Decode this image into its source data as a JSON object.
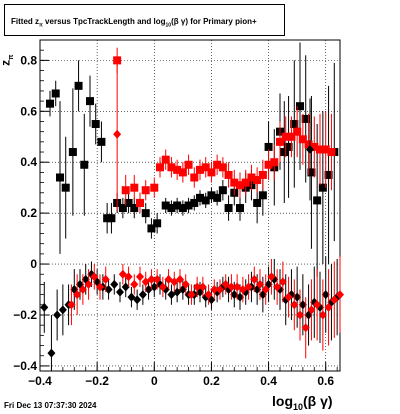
{
  "chart_data": {
    "type": "scatter",
    "title_parts": {
      "prefix": "Fitted  z",
      "sub1": "π",
      "middle": "  versus TpcTrackLength and log",
      "sub2": "10",
      "suffix": "(β γ) for Primary pion+"
    },
    "xlabel_parts": {
      "main": "log",
      "sub": "10",
      "suffix": "(β γ)"
    },
    "ylabel_parts": {
      "main": "z",
      "sub": "π"
    },
    "xlim": [
      -0.4,
      0.65
    ],
    "ylim": [
      -0.42,
      0.88
    ],
    "x_ticks": [
      -0.4,
      -0.2,
      0,
      0.2,
      0.4,
      0.6
    ],
    "x_tick_labels": [
      "−0.4",
      "−0.2",
      "0",
      "0.2",
      "0.4",
      "0.6"
    ],
    "y_ticks": [
      -0.4,
      -0.2,
      0,
      0.2,
      0.4,
      0.6,
      0.8
    ],
    "y_tick_labels": [
      "−0.4",
      "−0.2",
      "0",
      "0.2",
      "0.4",
      "0.6",
      "0.8"
    ],
    "grid": true,
    "series": [
      {
        "color": "#000000",
        "marker": "square",
        "points": [
          [
            -0.365,
            0.63,
            0.05
          ],
          [
            -0.345,
            0.67,
            0.05
          ],
          [
            -0.33,
            0.34,
            0.3
          ],
          [
            -0.31,
            0.3,
            0.2
          ],
          [
            -0.285,
            0.44,
            0.25
          ],
          [
            -0.265,
            0.7,
            0.1
          ],
          [
            -0.245,
            0.39,
            0.2
          ],
          [
            -0.225,
            0.64,
            0.1
          ],
          [
            -0.205,
            0.55,
            0.08
          ],
          [
            -0.185,
            0.48,
            0.08
          ],
          [
            -0.165,
            0.18,
            0.06
          ],
          [
            -0.15,
            0.18,
            0.06
          ],
          [
            -0.13,
            0.24,
            0.04
          ],
          [
            -0.11,
            0.22,
            0.04
          ],
          [
            -0.09,
            0.24,
            0.04
          ],
          [
            -0.07,
            0.22,
            0.04
          ],
          [
            -0.05,
            0.24,
            0.04
          ],
          [
            -0.03,
            0.2,
            0.04
          ],
          [
            -0.01,
            0.14,
            0.04
          ],
          [
            0.01,
            0.16,
            0.04
          ],
          [
            0.04,
            0.23,
            0.03
          ],
          [
            0.06,
            0.22,
            0.03
          ],
          [
            0.08,
            0.23,
            0.03
          ],
          [
            0.1,
            0.22,
            0.03
          ],
          [
            0.12,
            0.23,
            0.03
          ],
          [
            0.14,
            0.24,
            0.03
          ],
          [
            0.16,
            0.26,
            0.03
          ],
          [
            0.18,
            0.25,
            0.03
          ],
          [
            0.2,
            0.27,
            0.03
          ],
          [
            0.22,
            0.26,
            0.03
          ],
          [
            0.24,
            0.29,
            0.04
          ],
          [
            0.26,
            0.22,
            0.05
          ],
          [
            0.28,
            0.28,
            0.05
          ],
          [
            0.3,
            0.22,
            0.05
          ],
          [
            0.32,
            0.3,
            0.06
          ],
          [
            0.34,
            0.31,
            0.06
          ],
          [
            0.36,
            0.24,
            0.08
          ],
          [
            0.38,
            0.27,
            0.08
          ],
          [
            0.4,
            0.46,
            0.1
          ],
          [
            0.42,
            0.38,
            0.15
          ],
          [
            0.44,
            0.52,
            0.15
          ],
          [
            0.455,
            0.44,
            0.2
          ],
          [
            0.47,
            0.46,
            0.2
          ],
          [
            0.49,
            0.55,
            0.25
          ],
          [
            0.51,
            0.62,
            0.25
          ],
          [
            0.53,
            0.57,
            0.25
          ],
          [
            0.55,
            0.36,
            0.3
          ],
          [
            0.57,
            0.25,
            0.3
          ],
          [
            0.59,
            0.3,
            0.3
          ],
          [
            0.61,
            0.35,
            0.35
          ],
          [
            0.63,
            0.44,
            0.35
          ]
        ]
      },
      {
        "color": "#ff0000",
        "marker": "square",
        "points": [
          [
            -0.13,
            0.8,
            0.05
          ],
          [
            -0.1,
            0.29,
            0.06
          ],
          [
            -0.07,
            0.3,
            0.05
          ],
          [
            -0.05,
            0.24,
            0.04
          ],
          [
            -0.03,
            0.29,
            0.04
          ],
          [
            0.0,
            0.3,
            0.04
          ],
          [
            0.02,
            0.38,
            0.04
          ],
          [
            0.04,
            0.41,
            0.04
          ],
          [
            0.06,
            0.38,
            0.04
          ],
          [
            0.08,
            0.37,
            0.04
          ],
          [
            0.1,
            0.36,
            0.04
          ],
          [
            0.12,
            0.39,
            0.04
          ],
          [
            0.14,
            0.34,
            0.04
          ],
          [
            0.16,
            0.37,
            0.04
          ],
          [
            0.18,
            0.38,
            0.04
          ],
          [
            0.2,
            0.36,
            0.04
          ],
          [
            0.22,
            0.39,
            0.04
          ],
          [
            0.24,
            0.38,
            0.04
          ],
          [
            0.26,
            0.35,
            0.05
          ],
          [
            0.28,
            0.32,
            0.05
          ],
          [
            0.3,
            0.31,
            0.05
          ],
          [
            0.32,
            0.32,
            0.05
          ],
          [
            0.34,
            0.34,
            0.05
          ],
          [
            0.36,
            0.33,
            0.05
          ],
          [
            0.38,
            0.35,
            0.06
          ],
          [
            0.4,
            0.39,
            0.06
          ],
          [
            0.42,
            0.4,
            0.07
          ],
          [
            0.44,
            0.48,
            0.08
          ],
          [
            0.46,
            0.5,
            0.08
          ],
          [
            0.48,
            0.5,
            0.08
          ],
          [
            0.5,
            0.52,
            0.1
          ],
          [
            0.52,
            0.49,
            0.1
          ],
          [
            0.54,
            0.47,
            0.12
          ],
          [
            0.56,
            0.46,
            0.12
          ],
          [
            0.58,
            0.45,
            0.14
          ],
          [
            0.6,
            0.45,
            0.15
          ],
          [
            0.62,
            0.44,
            0.15
          ]
        ]
      },
      {
        "color": "#000000",
        "marker": "diamond",
        "points": [
          [
            -0.385,
            -0.17,
            0.1
          ],
          [
            -0.36,
            -0.35,
            0.15
          ],
          [
            -0.34,
            -0.2,
            0.1
          ],
          [
            -0.32,
            -0.18,
            0.1
          ],
          [
            -0.3,
            -0.16,
            0.08
          ],
          [
            -0.28,
            -0.1,
            0.08
          ],
          [
            -0.26,
            -0.08,
            0.06
          ],
          [
            -0.24,
            -0.06,
            0.06
          ],
          [
            -0.22,
            -0.04,
            0.05
          ],
          [
            -0.2,
            -0.07,
            0.05
          ],
          [
            -0.18,
            -0.09,
            0.05
          ],
          [
            -0.16,
            -0.1,
            0.04
          ],
          [
            -0.14,
            -0.08,
            0.04
          ],
          [
            -0.12,
            -0.11,
            0.04
          ],
          [
            -0.1,
            -0.09,
            0.04
          ],
          [
            -0.08,
            -0.13,
            0.04
          ],
          [
            -0.06,
            -0.14,
            0.04
          ],
          [
            -0.04,
            -0.12,
            0.04
          ],
          [
            -0.02,
            -0.1,
            0.04
          ],
          [
            0.0,
            -0.09,
            0.04
          ],
          [
            0.02,
            -0.08,
            0.04
          ],
          [
            0.04,
            -0.1,
            0.04
          ],
          [
            0.06,
            -0.12,
            0.04
          ],
          [
            0.08,
            -0.11,
            0.04
          ],
          [
            0.1,
            -0.1,
            0.04
          ],
          [
            0.12,
            -0.12,
            0.04
          ],
          [
            0.14,
            -0.12,
            0.04
          ],
          [
            0.16,
            -0.11,
            0.04
          ],
          [
            0.18,
            -0.13,
            0.04
          ],
          [
            0.2,
            -0.14,
            0.04
          ],
          [
            0.22,
            -0.11,
            0.04
          ],
          [
            0.24,
            -0.09,
            0.04
          ],
          [
            0.26,
            -0.1,
            0.05
          ],
          [
            0.28,
            -0.12,
            0.05
          ],
          [
            0.3,
            -0.13,
            0.05
          ],
          [
            0.32,
            -0.11,
            0.05
          ],
          [
            0.34,
            -0.09,
            0.06
          ],
          [
            0.36,
            -0.1,
            0.06
          ],
          [
            0.38,
            -0.12,
            0.07
          ],
          [
            0.4,
            -0.08,
            0.07
          ],
          [
            0.42,
            -0.06,
            0.08
          ],
          [
            0.44,
            -0.1,
            0.08
          ],
          [
            0.46,
            -0.14,
            0.1
          ],
          [
            0.48,
            -0.12,
            0.1
          ],
          [
            0.5,
            -0.13,
            0.12
          ],
          [
            0.52,
            -0.16,
            0.12
          ],
          [
            0.54,
            -0.2,
            0.12
          ],
          [
            0.56,
            -0.15,
            0.14
          ],
          [
            0.58,
            -0.17,
            0.14
          ],
          [
            0.6,
            -0.12,
            0.15
          ],
          [
            0.62,
            -0.15,
            0.15
          ],
          [
            0.64,
            -0.13,
            0.15
          ],
          [
            0.545,
            0.45,
            0.2
          ]
        ]
      },
      {
        "color": "#ff0000",
        "marker": "diamond",
        "points": [
          [
            -0.29,
            -0.16,
            0.08
          ],
          [
            -0.27,
            -0.12,
            0.08
          ],
          [
            -0.25,
            -0.1,
            0.06
          ],
          [
            -0.23,
            -0.08,
            0.06
          ],
          [
            -0.21,
            -0.05,
            0.05
          ],
          [
            -0.19,
            -0.09,
            0.05
          ],
          [
            -0.17,
            -0.06,
            0.05
          ],
          [
            -0.13,
            0.51,
            0.3
          ],
          [
            -0.11,
            -0.04,
            0.04
          ],
          [
            -0.09,
            -0.05,
            0.04
          ],
          [
            -0.07,
            -0.08,
            0.04
          ],
          [
            -0.05,
            -0.05,
            0.04
          ],
          [
            -0.03,
            -0.07,
            0.04
          ],
          [
            -0.01,
            -0.06,
            0.04
          ],
          [
            0.01,
            -0.06,
            0.04
          ],
          [
            0.03,
            -0.09,
            0.04
          ],
          [
            0.05,
            -0.06,
            0.04
          ],
          [
            0.07,
            -0.07,
            0.04
          ],
          [
            0.09,
            -0.06,
            0.04
          ],
          [
            0.11,
            -0.08,
            0.04
          ],
          [
            0.13,
            -0.12,
            0.04
          ],
          [
            0.15,
            -0.09,
            0.04
          ],
          [
            0.17,
            -0.09,
            0.04
          ],
          [
            0.19,
            -0.12,
            0.04
          ],
          [
            0.21,
            -0.1,
            0.04
          ],
          [
            0.23,
            -0.1,
            0.04
          ],
          [
            0.25,
            -0.08,
            0.04
          ],
          [
            0.27,
            -0.09,
            0.05
          ],
          [
            0.29,
            -0.09,
            0.05
          ],
          [
            0.31,
            -0.1,
            0.05
          ],
          [
            0.33,
            -0.09,
            0.05
          ],
          [
            0.35,
            -0.06,
            0.05
          ],
          [
            0.37,
            -0.08,
            0.06
          ],
          [
            0.39,
            -0.1,
            0.06
          ],
          [
            0.41,
            -0.05,
            0.07
          ],
          [
            0.43,
            -0.09,
            0.07
          ],
          [
            0.45,
            -0.07,
            0.08
          ],
          [
            0.47,
            -0.13,
            0.08
          ],
          [
            0.49,
            -0.16,
            0.1
          ],
          [
            0.51,
            -0.2,
            0.1
          ],
          [
            0.53,
            -0.25,
            0.12
          ],
          [
            0.55,
            -0.18,
            0.12
          ],
          [
            0.57,
            -0.16,
            0.14
          ],
          [
            0.59,
            -0.2,
            0.14
          ],
          [
            0.61,
            -0.17,
            0.15
          ],
          [
            0.63,
            -0.14,
            0.15
          ],
          [
            0.65,
            -0.12,
            0.15
          ]
        ]
      }
    ]
  },
  "footer": "Fri Dec 13 07:37:30 2024"
}
